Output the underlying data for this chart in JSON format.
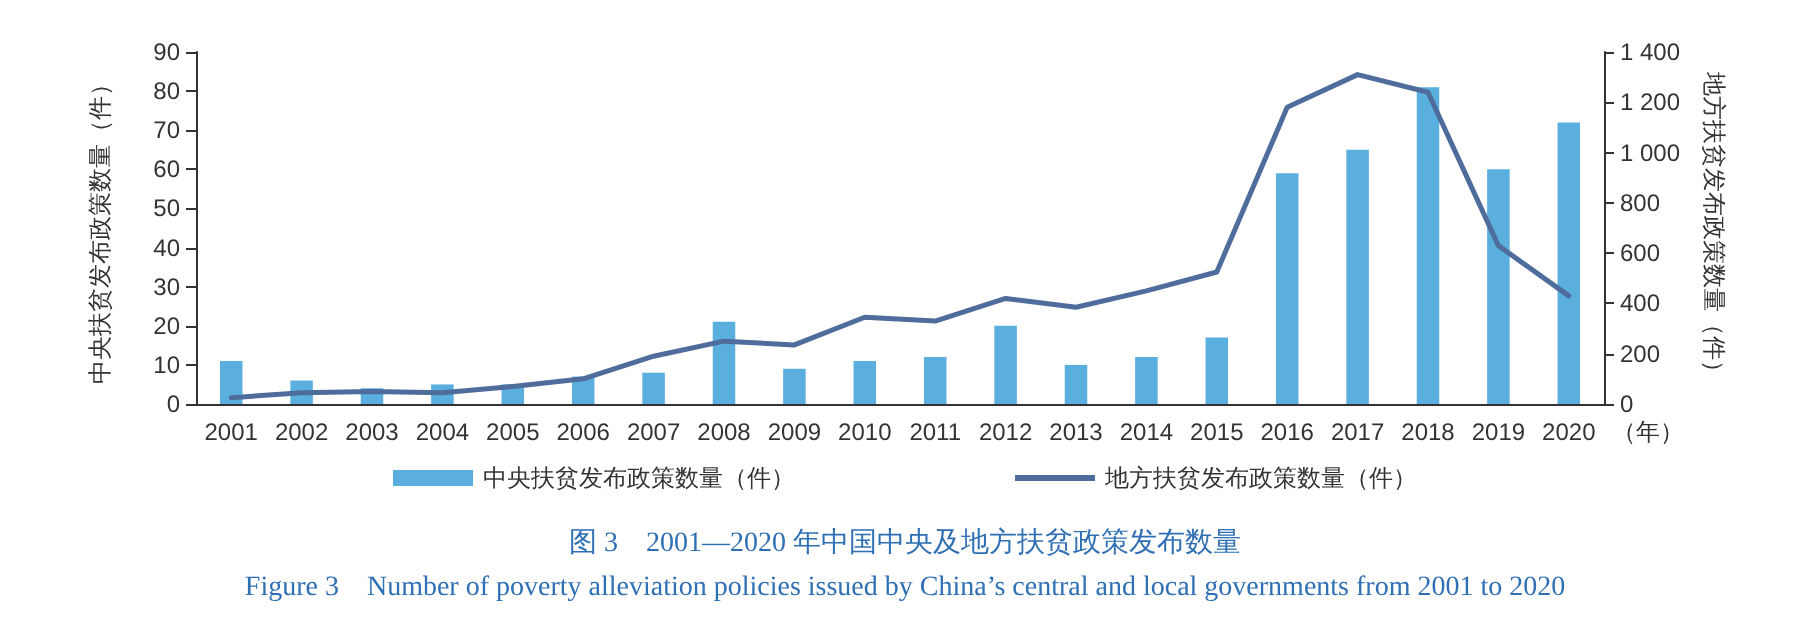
{
  "chart_data": {
    "type": "bar",
    "title": "图 3　2001—2020 年中国中央及地方扶贫政策发布数量",
    "subtitle": "Figure 3　Number of poverty alleviation policies issued by China’s central and local governments from 2001 to 2020",
    "xlabel": "（年）",
    "ylabel": "中央扶贫发布政策数量（件）",
    "y2label": "地方扶贫发布政策数量（件）",
    "categories": [
      "2001",
      "2002",
      "2003",
      "2004",
      "2005",
      "2006",
      "2007",
      "2008",
      "2009",
      "2010",
      "2011",
      "2012",
      "2013",
      "2014",
      "2015",
      "2016",
      "2017",
      "2018",
      "2019",
      "2020"
    ],
    "series": [
      {
        "name": "中央扶贫发布政策数量（件）",
        "color": "#5aafdf",
        "values": [
          11,
          6,
          4,
          5,
          5,
          7,
          8,
          21,
          9,
          11,
          12,
          20,
          10,
          12,
          17,
          59,
          65,
          81,
          60,
          72
        ]
      },
      {
        "name": "地方扶贫发布政策数量（件）",
        "type": "line",
        "axis": "y2",
        "color": "#4f6d9c",
        "values": [
          25,
          45,
          50,
          45,
          70,
          100,
          190,
          250,
          235,
          345,
          330,
          420,
          385,
          450,
          525,
          1180,
          1310,
          1240,
          630,
          430
        ]
      }
    ],
    "ylim": [
      0,
      90
    ],
    "yticks": [
      0,
      10,
      20,
      30,
      40,
      50,
      60,
      70,
      80,
      90
    ],
    "y2lim": [
      0,
      1400
    ],
    "y2ticks": [
      0,
      200,
      400,
      600,
      800,
      {
        "value": 1000,
        "label": "1 000"
      },
      {
        "value": 1200,
        "label": "1 200"
      },
      {
        "value": 1400,
        "label": "1 400"
      }
    ],
    "grid": false,
    "legend": "bottom",
    "marker": "none",
    "line_style": "solid"
  }
}
